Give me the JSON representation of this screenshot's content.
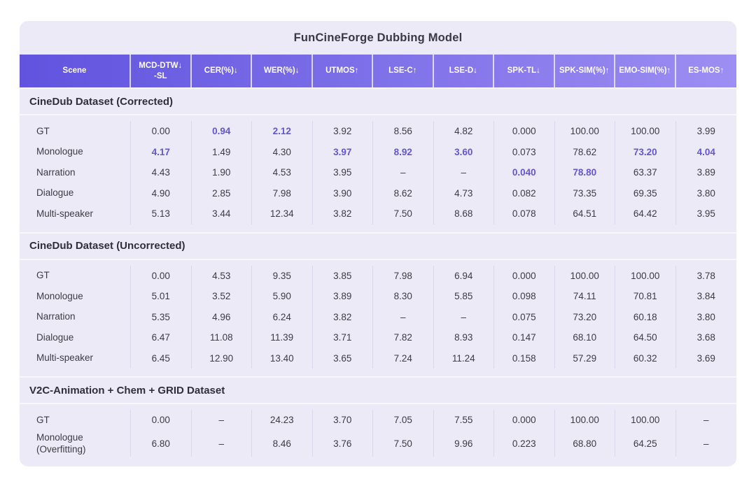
{
  "title": "FunCineForge Dubbing Model",
  "colors": {
    "card": "#ECEAF6",
    "hdr1": "#6153DE",
    "hdr2": "#9C8EF2",
    "accent": "#6355D8",
    "ink": "#3A3844",
    "ink2": "#3C3B43",
    "sep": "#DBD7EA",
    "line2": "#F8F7FC"
  },
  "table": {
    "columns": [
      {
        "label": "Scene",
        "arrow": ""
      },
      {
        "label": "MCD-DTW",
        "arrow": "↓",
        "sublabel": "-SL"
      },
      {
        "label": "CER(%)",
        "arrow": "↓"
      },
      {
        "label": "WER(%)",
        "arrow": "↓"
      },
      {
        "label": "UTMOS",
        "arrow": "↑"
      },
      {
        "label": "LSE-C",
        "arrow": "↑"
      },
      {
        "label": "LSE-D",
        "arrow": "↓"
      },
      {
        "label": "SPK-TL",
        "arrow": "↓"
      },
      {
        "label": "SPK-SIM(%)",
        "arrow": "↑"
      },
      {
        "label": "EMO-SIM(%)",
        "arrow": "↑"
      },
      {
        "label": "ES-MOS",
        "arrow": "↑"
      }
    ],
    "sections": [
      {
        "title": "CineDub Dataset (Corrected)",
        "rows": [
          {
            "scene": "GT",
            "values": [
              "0.00",
              "0.94",
              "2.12",
              "3.92",
              "8.56",
              "4.82",
              "0.000",
              "100.00",
              "100.00",
              "3.99"
            ],
            "highlight": [
              1,
              2
            ]
          },
          {
            "scene": "Monologue",
            "values": [
              "4.17",
              "1.49",
              "4.30",
              "3.97",
              "8.92",
              "3.60",
              "0.073",
              "78.62",
              "73.20",
              "4.04"
            ],
            "highlight": [
              0,
              3,
              4,
              5,
              8,
              9
            ]
          },
          {
            "scene": "Narration",
            "values": [
              "4.43",
              "1.90",
              "4.53",
              "3.95",
              "–",
              "–",
              "0.040",
              "78.80",
              "63.37",
              "3.89"
            ],
            "highlight": [
              6,
              7
            ]
          },
          {
            "scene": "Dialogue",
            "values": [
              "4.90",
              "2.85",
              "7.98",
              "3.90",
              "8.62",
              "4.73",
              "0.082",
              "73.35",
              "69.35",
              "3.80"
            ],
            "highlight": []
          },
          {
            "scene": "Multi-speaker",
            "values": [
              "5.13",
              "3.44",
              "12.34",
              "3.82",
              "7.50",
              "8.68",
              "0.078",
              "64.51",
              "64.42",
              "3.95"
            ],
            "highlight": []
          }
        ]
      },
      {
        "title": "CineDub Dataset (Uncorrected)",
        "rows": [
          {
            "scene": "GT",
            "values": [
              "0.00",
              "4.53",
              "9.35",
              "3.85",
              "7.98",
              "6.94",
              "0.000",
              "100.00",
              "100.00",
              "3.78"
            ],
            "highlight": []
          },
          {
            "scene": "Monologue",
            "values": [
              "5.01",
              "3.52",
              "5.90",
              "3.89",
              "8.30",
              "5.85",
              "0.098",
              "74.11",
              "70.81",
              "3.84"
            ],
            "highlight": []
          },
          {
            "scene": "Narration",
            "values": [
              "5.35",
              "4.96",
              "6.24",
              "3.82",
              "–",
              "–",
              "0.075",
              "73.20",
              "60.18",
              "3.80"
            ],
            "highlight": []
          },
          {
            "scene": "Dialogue",
            "values": [
              "6.47",
              "11.08",
              "11.39",
              "3.71",
              "7.82",
              "8.93",
              "0.147",
              "68.10",
              "64.50",
              "3.68"
            ],
            "highlight": []
          },
          {
            "scene": "Multi-speaker",
            "values": [
              "6.45",
              "12.90",
              "13.40",
              "3.65",
              "7.24",
              "11.24",
              "0.158",
              "57.29",
              "60.32",
              "3.69"
            ],
            "highlight": []
          }
        ]
      },
      {
        "title": "V2C-Animation + Chem + GRID Dataset",
        "rows": [
          {
            "scene": "GT",
            "values": [
              "0.00",
              "–",
              "24.23",
              "3.70",
              "7.05",
              "7.55",
              "0.000",
              "100.00",
              "100.00",
              "–"
            ],
            "highlight": []
          },
          {
            "scene": "Monologue\n(Overfitting)",
            "values": [
              "6.80",
              "–",
              "8.46",
              "3.76",
              "7.50",
              "9.96",
              "0.223",
              "68.80",
              "64.25",
              "–"
            ],
            "highlight": []
          }
        ]
      }
    ]
  }
}
